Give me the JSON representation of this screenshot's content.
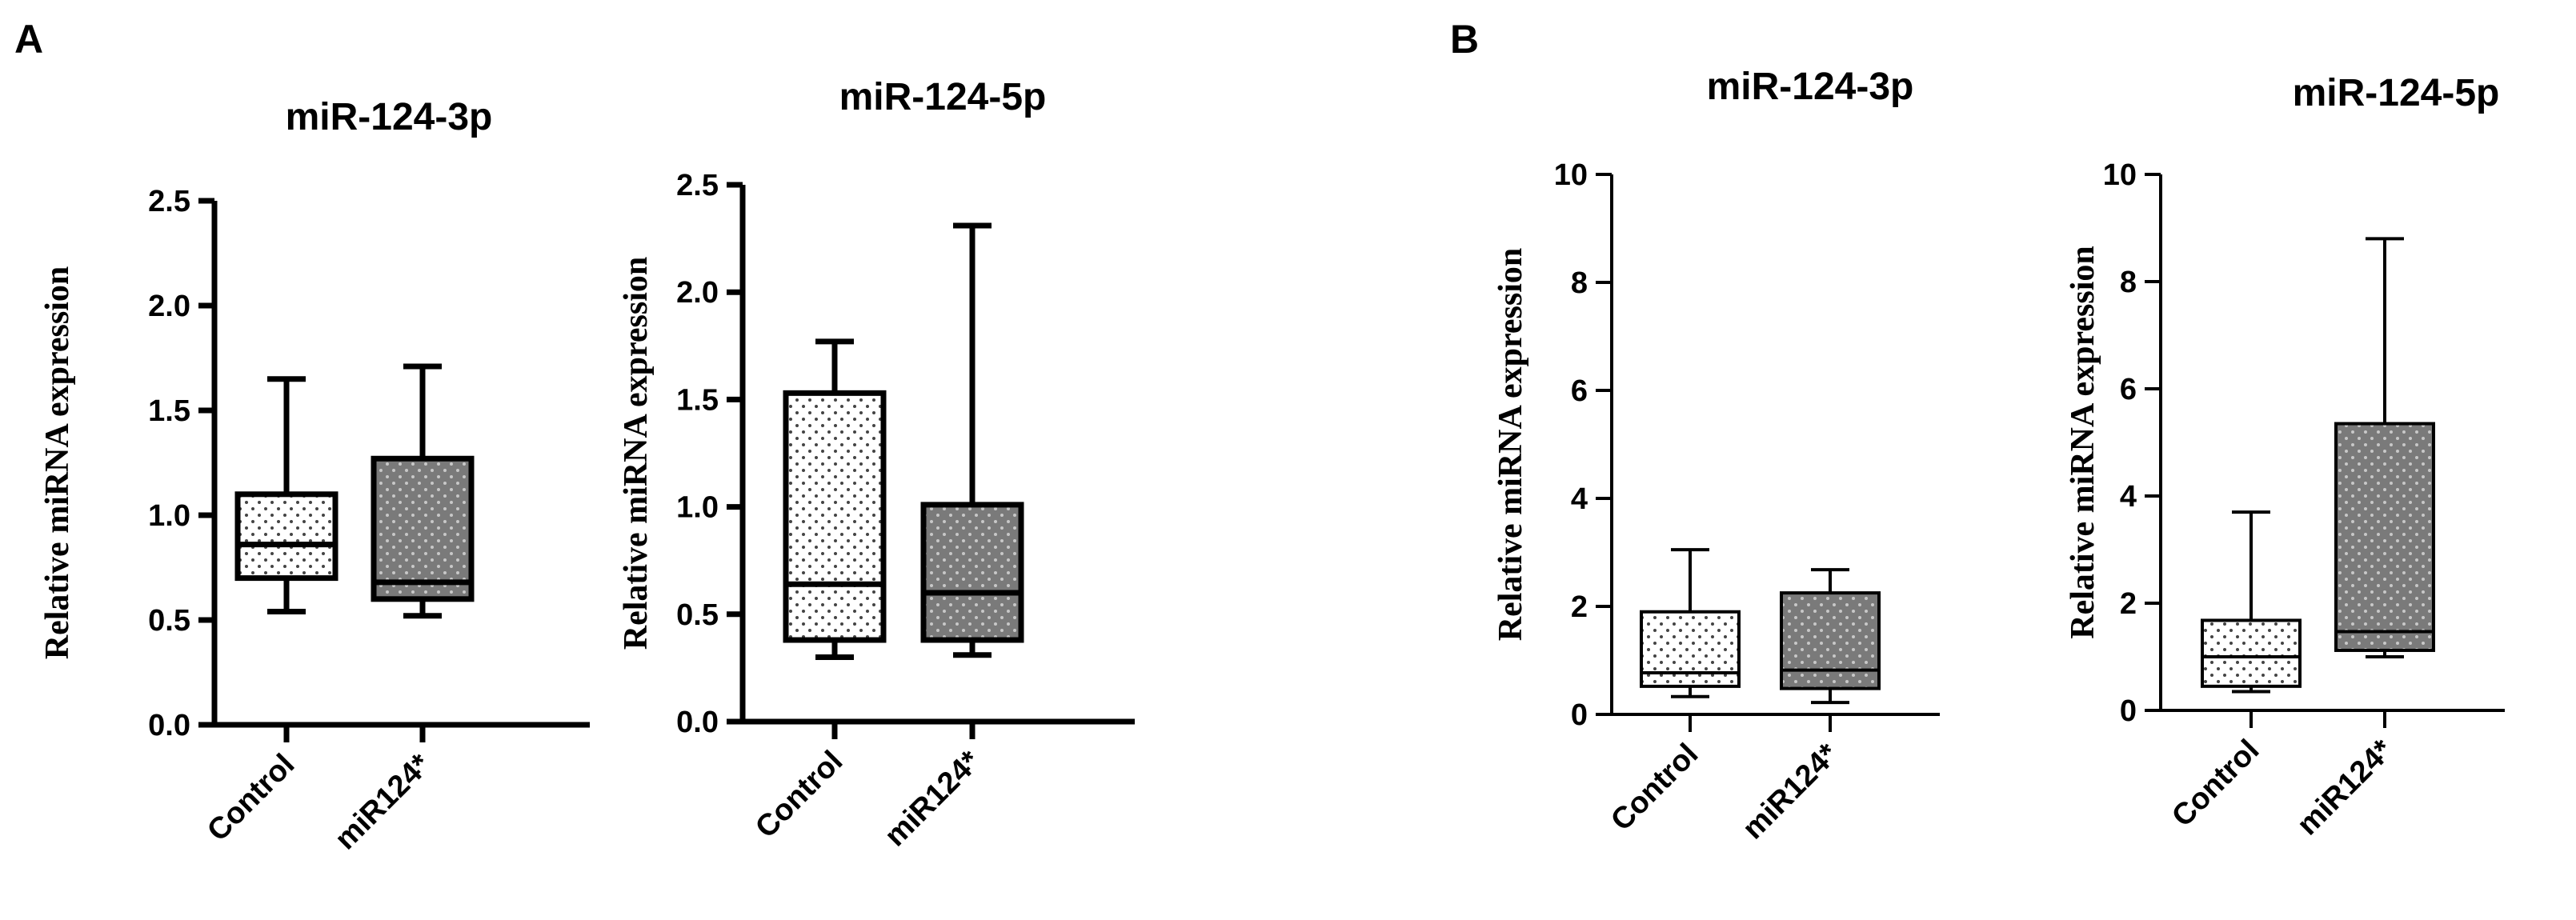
{
  "panels": [
    {
      "letter": "A"
    },
    {
      "letter": "B"
    }
  ],
  "colors": {
    "control_fill": "#ffffff",
    "control_dots": "#444444",
    "treatment_fill": "#7a7a7a",
    "treatment_dots": "#c8c8c8",
    "stroke": "#000000"
  },
  "chart_data": [
    {
      "type": "box",
      "panel": "A",
      "title": "miR-124-3p",
      "ylabel": "Relative miRNA expression",
      "ylim": [
        0,
        2.5
      ],
      "yticks": [
        0.0,
        0.5,
        1.0,
        1.5,
        2.0,
        2.5
      ],
      "ytick_labels": [
        "0.0",
        "0.5",
        "1.0",
        "1.5",
        "2.0",
        "2.5"
      ],
      "categories": [
        "Control",
        "miR124*"
      ],
      "boxes": [
        {
          "min": 0.54,
          "q1": 0.7,
          "median": 0.86,
          "q3": 1.1,
          "max": 1.65
        },
        {
          "min": 0.52,
          "q1": 0.6,
          "median": 0.68,
          "q3": 1.27,
          "max": 1.71
        }
      ]
    },
    {
      "type": "box",
      "panel": "A",
      "title": "miR-124-5p",
      "ylabel": "Relative miRNA expression",
      "ylim": [
        0,
        2.5
      ],
      "yticks": [
        0.0,
        0.5,
        1.0,
        1.5,
        2.0,
        2.5
      ],
      "ytick_labels": [
        "0.0",
        "0.5",
        "1.0",
        "1.5",
        "2.0",
        "2.5"
      ],
      "categories": [
        "Control",
        "miR124*"
      ],
      "boxes": [
        {
          "min": 0.3,
          "q1": 0.38,
          "median": 0.64,
          "q3": 1.53,
          "max": 1.77
        },
        {
          "min": 0.31,
          "q1": 0.38,
          "median": 0.6,
          "q3": 1.01,
          "max": 2.31
        }
      ]
    },
    {
      "type": "box",
      "panel": "B",
      "title": "miR-124-3p",
      "ylabel": "Relative miRNA expression",
      "ylim": [
        0,
        10
      ],
      "yticks": [
        0,
        2,
        4,
        6,
        8,
        10
      ],
      "ytick_labels": [
        "0",
        "2",
        "4",
        "6",
        "8",
        "10"
      ],
      "categories": [
        "Control",
        "miR124*"
      ],
      "boxes": [
        {
          "min": 0.33,
          "q1": 0.52,
          "median": 0.77,
          "q3": 1.9,
          "max": 3.05
        },
        {
          "min": 0.22,
          "q1": 0.48,
          "median": 0.82,
          "q3": 2.25,
          "max": 2.68
        }
      ]
    },
    {
      "type": "box",
      "panel": "B",
      "title": "miR-124-5p",
      "ylabel": "Relative miRNA expression",
      "ylim": [
        0,
        10
      ],
      "yticks": [
        0,
        2,
        4,
        6,
        8,
        10
      ],
      "ytick_labels": [
        "0",
        "2",
        "4",
        "6",
        "8",
        "10"
      ],
      "categories": [
        "Control",
        "miR124*"
      ],
      "boxes": [
        {
          "min": 0.35,
          "q1": 0.45,
          "median": 1.0,
          "q3": 1.68,
          "max": 3.7
        },
        {
          "min": 1.0,
          "q1": 1.12,
          "median": 1.47,
          "q3": 5.35,
          "max": 8.8
        }
      ]
    }
  ]
}
